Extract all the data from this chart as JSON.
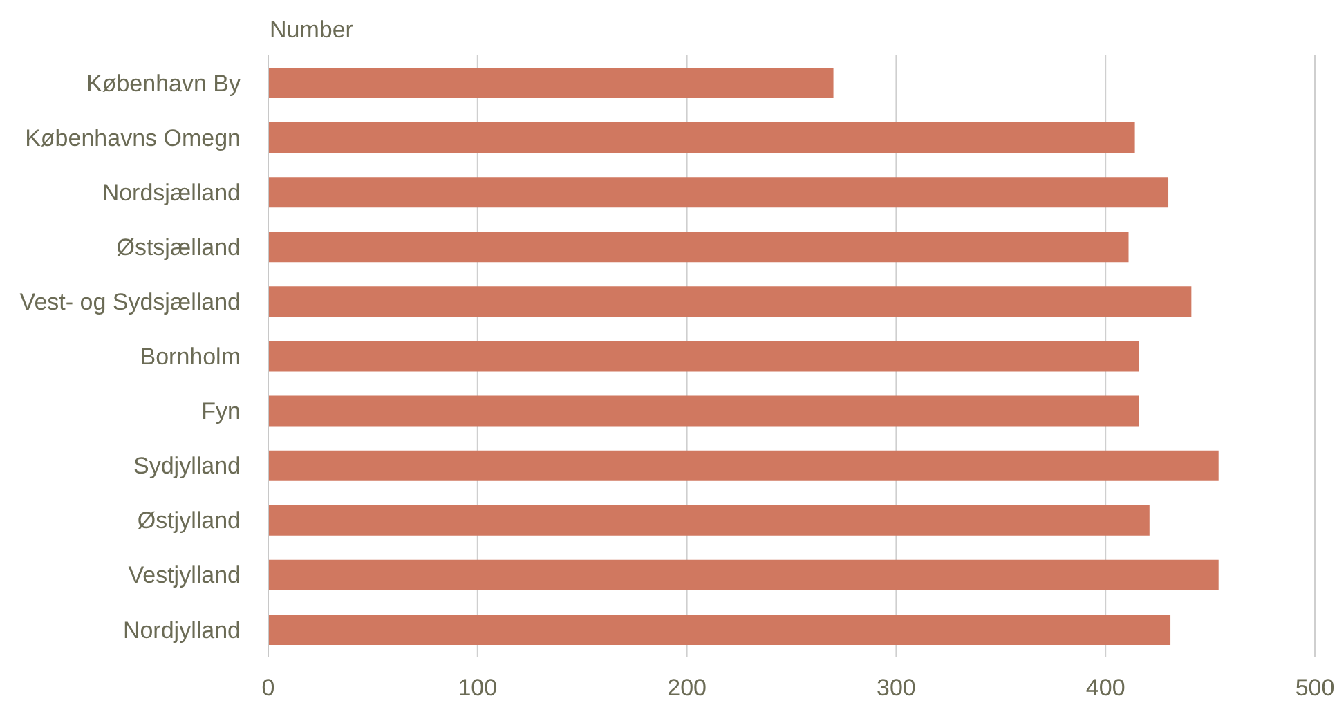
{
  "chart_data": {
    "type": "bar",
    "orientation": "horizontal",
    "ylabel": "Number",
    "categories": [
      "København By",
      "Københavns Omegn",
      "Nordsjælland",
      "Østsjælland",
      "Vest- og Sydsjælland",
      "Bornholm",
      "Fyn",
      "Sydjylland",
      "Østjylland",
      "Vestjylland",
      "Nordjylland"
    ],
    "values": [
      270,
      414,
      430,
      411,
      441,
      416,
      416,
      454,
      421,
      454,
      431
    ],
    "color": "#d07860",
    "xlim": [
      0,
      500
    ],
    "xticks": [
      0,
      100,
      200,
      300,
      400,
      500
    ],
    "grid": "x",
    "legend": false
  }
}
